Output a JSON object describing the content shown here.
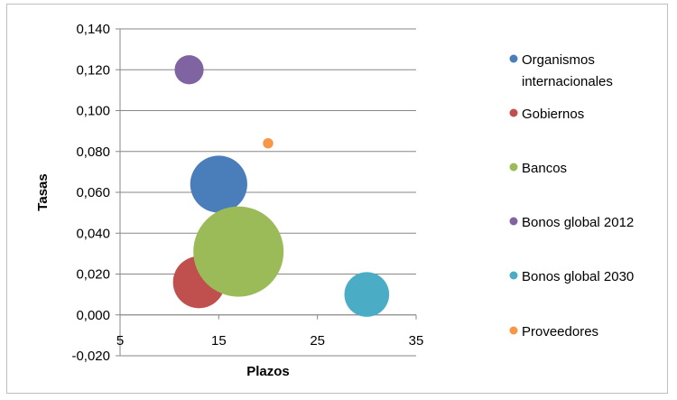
{
  "chart_data": {
    "type": "bubble",
    "xlabel": "Plazos",
    "ylabel": "Tasas",
    "xlim": [
      5,
      35
    ],
    "ylim": [
      -0.02,
      0.14
    ],
    "xticks": [
      "5",
      "15",
      "25",
      "35"
    ],
    "xtick_values": [
      5,
      15,
      25,
      35
    ],
    "yticks": [
      "-0,020",
      "0,000",
      "0,020",
      "0,040",
      "0,060",
      "0,080",
      "0,100",
      "0,120",
      "0,140"
    ],
    "ytick_values": [
      -0.02,
      0,
      0.02,
      0.04,
      0.06,
      0.08,
      0.1,
      0.12,
      0.14
    ],
    "grid": "horizontal",
    "legend_position": "right",
    "series": [
      {
        "name": "Organismos internacionales",
        "name_lines": [
          "Organismos",
          "internacionales"
        ],
        "x": 15,
        "y": 0.064,
        "size": 12.3,
        "color": "#4a7ebb"
      },
      {
        "name": "Gobiernos",
        "name_lines": [
          "Gobiernos"
        ],
        "x": 13,
        "y": 0.016,
        "size": 10.2,
        "color": "#c0504d"
      },
      {
        "name": "Bancos",
        "name_lines": [
          "Bancos"
        ],
        "x": 17,
        "y": 0.031,
        "size": 30.8,
        "color": "#9bbb59"
      },
      {
        "name": "Bonos global 2012",
        "name_lines": [
          "Bonos global 2012"
        ],
        "x": 12,
        "y": 0.12,
        "size": 3.2,
        "color": "#8064a2"
      },
      {
        "name": "Bonos global 2030",
        "name_lines": [
          "Bonos global 2030"
        ],
        "x": 30,
        "y": 0.01,
        "size": 7.6,
        "color": "#4bacc6"
      },
      {
        "name": "Proveedores",
        "name_lines": [
          "Proveedores"
        ],
        "x": 20,
        "y": 0.084,
        "size": 0.4,
        "color": "#f79646"
      }
    ]
  }
}
